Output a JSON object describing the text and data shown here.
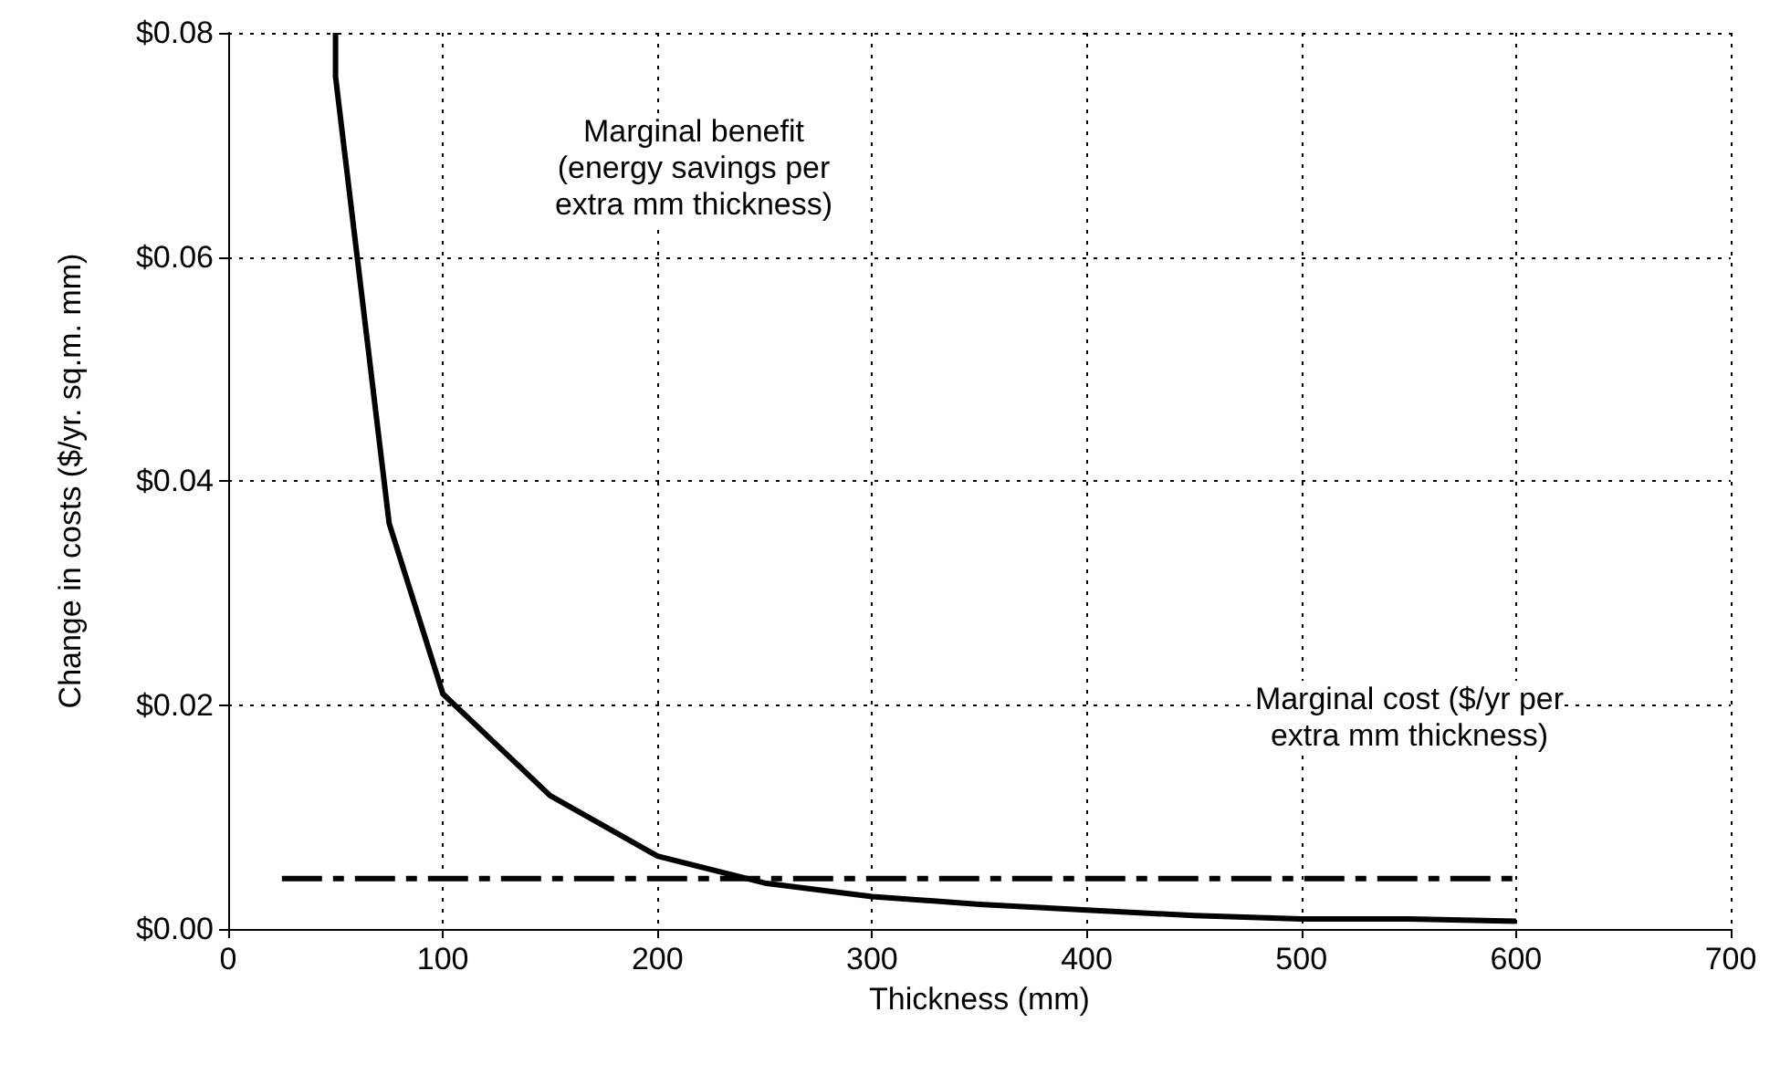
{
  "chart_data": {
    "type": "line",
    "xlabel": "Thickness (mm)",
    "ylabel": "Change in costs ($/yr. sq.m. mm)",
    "series": [
      {
        "color": "#000000",
        "line_style": "solid",
        "x": [
          50,
          50,
          75,
          100,
          150,
          200,
          250,
          300,
          350,
          400,
          450,
          500,
          550,
          600
        ],
        "values": [
          0.08,
          0.0761,
          0.0362,
          0.021,
          0.0119,
          0.0065,
          0.0041,
          0.0029,
          0.0022,
          0.0017,
          0.0012,
          0.0009,
          0.0009,
          0.0007
        ]
      },
      {
        "color": "#000000",
        "line_style": "dashed",
        "x": [
          25,
          600
        ],
        "values": [
          0.0045,
          0.0045
        ]
      }
    ],
    "annotations": [
      "Marginal benefit\n(energy savings per\nextra mm thickness)",
      "Marginal cost ($/yr per\nextra mm thickness)"
    ],
    "xlim": [
      0,
      700
    ],
    "xticks": [
      0,
      100,
      200,
      300,
      400,
      500,
      600,
      700
    ],
    "ylim": [
      0,
      0.08
    ],
    "yticks": [
      {
        "value": 0,
        "label": "$0.00"
      },
      {
        "value": 0.02,
        "label": "$0.02"
      },
      {
        "value": 0.04,
        "label": "$0.04"
      },
      {
        "value": 0.06,
        "label": "$0.06"
      },
      {
        "value": 0.08,
        "label": "$0.08"
      }
    ],
    "grid": true,
    "marker": "none"
  }
}
